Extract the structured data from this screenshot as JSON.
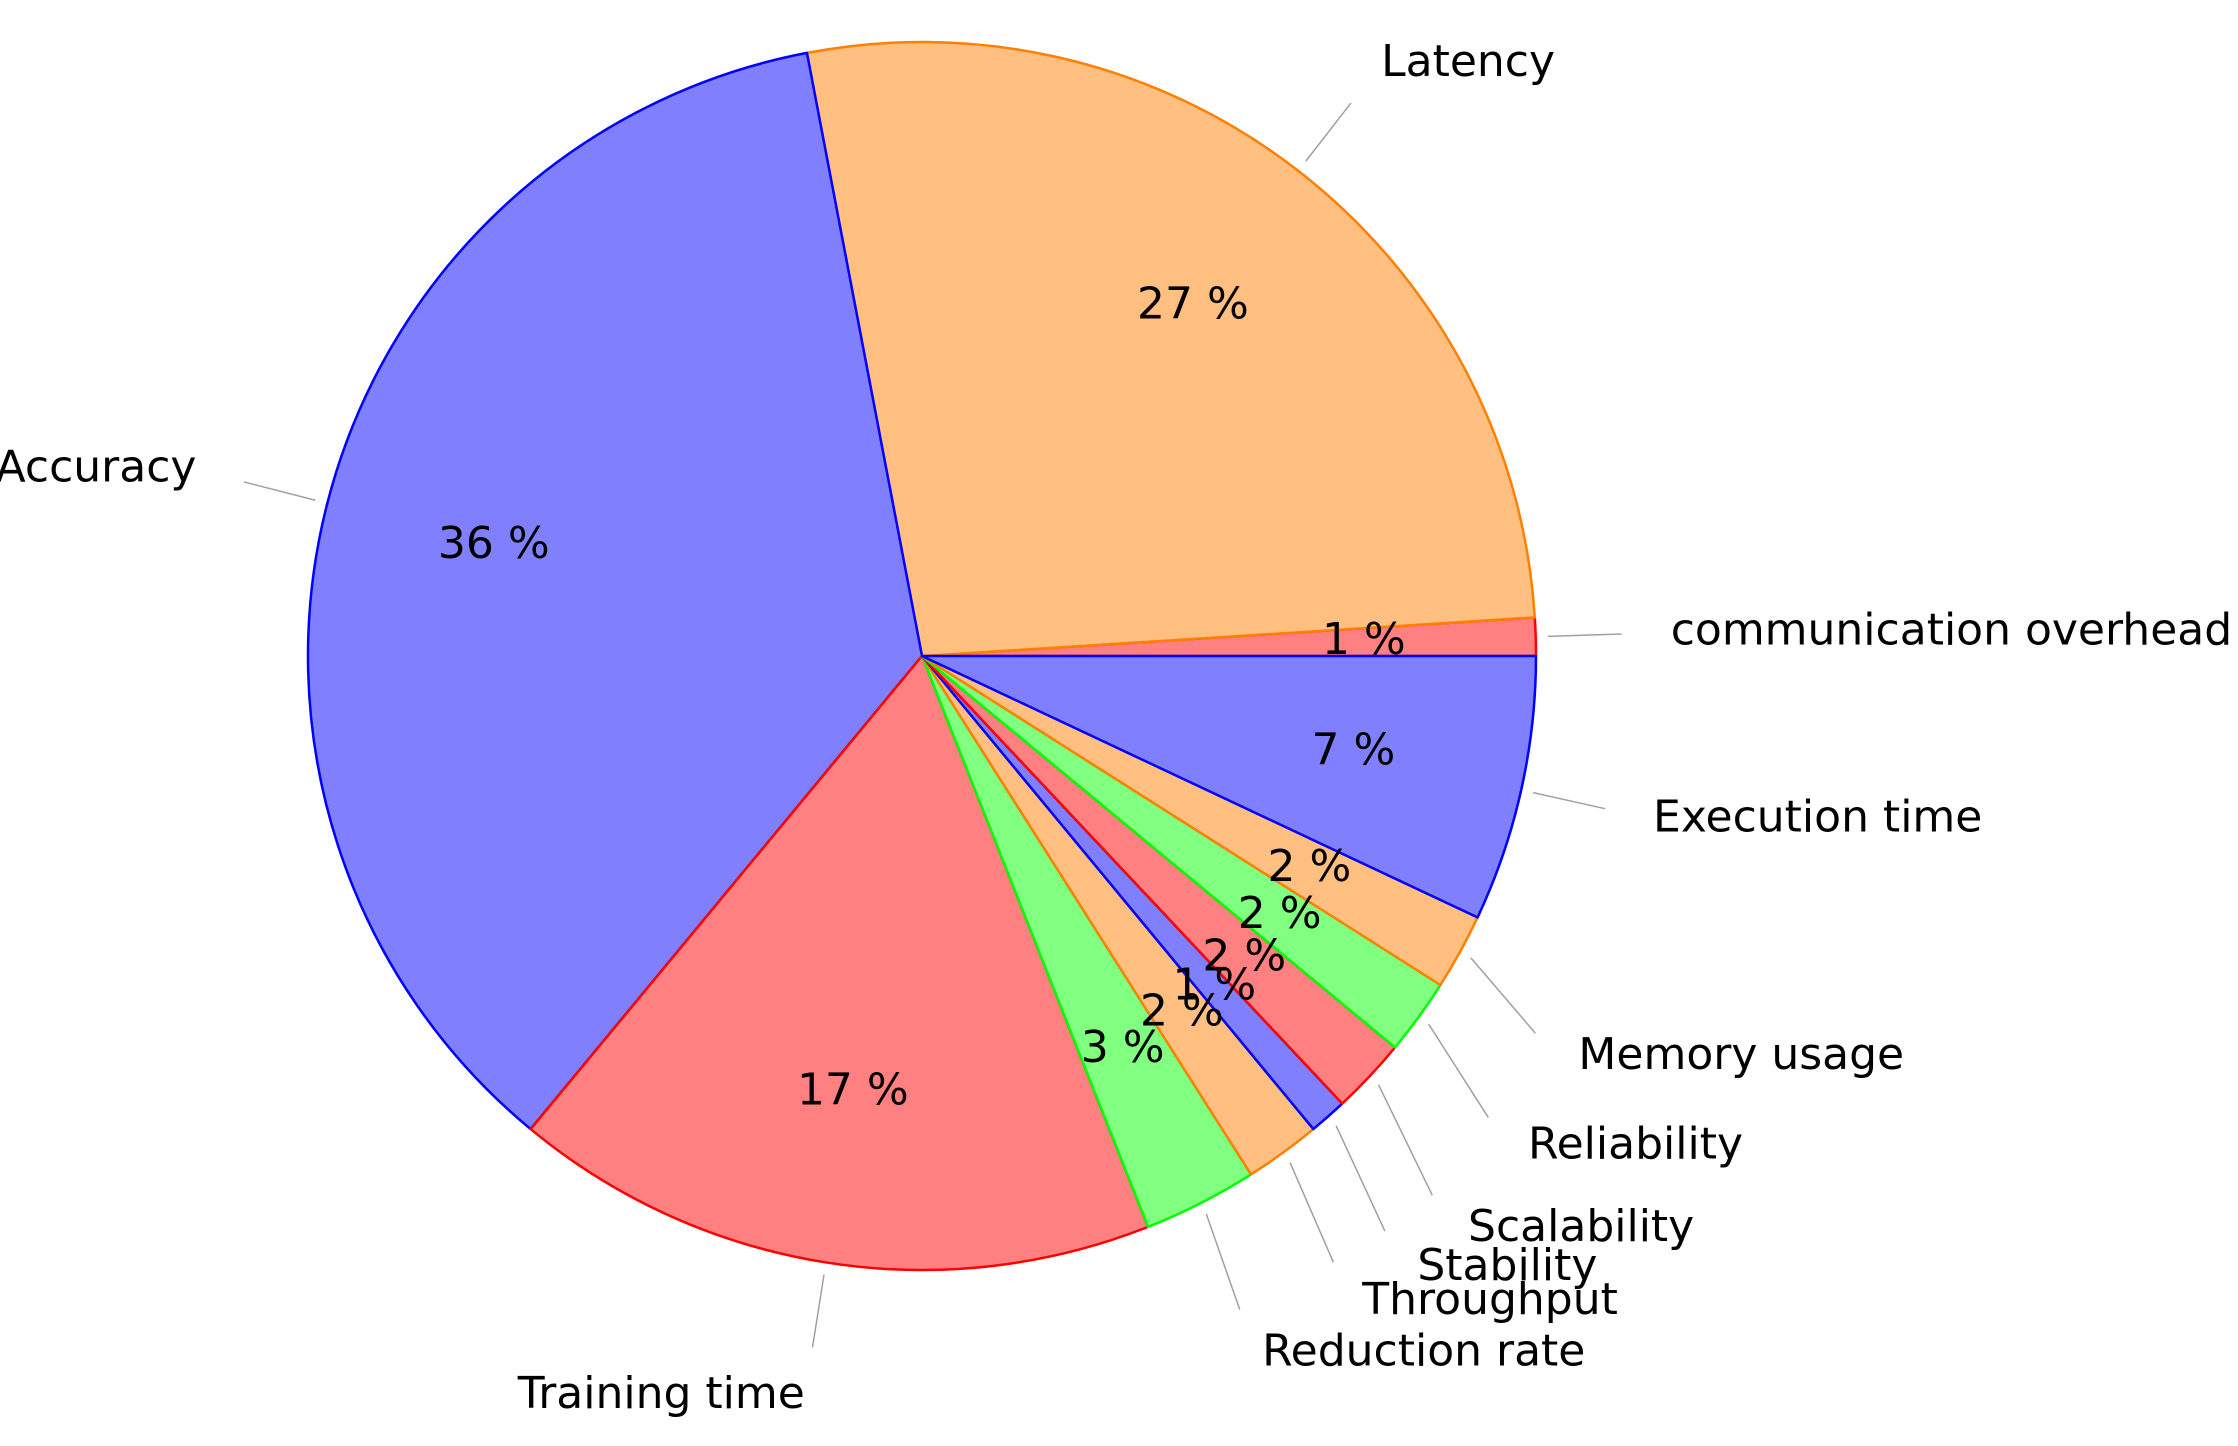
{
  "chart_data": {
    "type": "pie",
    "title": "",
    "unit_suffix": " %",
    "slices": [
      {
        "label": "communication overhead",
        "value": 1,
        "fill": "#ff8080",
        "stroke": "#ff0000"
      },
      {
        "label": "Latency",
        "value": 27,
        "fill": "#ffbf80",
        "stroke": "#ff8000"
      },
      {
        "label": "Accuracy",
        "value": 36,
        "fill": "#8080ff",
        "stroke": "#0000ff"
      },
      {
        "label": "Training time",
        "value": 17,
        "fill": "#ff8080",
        "stroke": "#ff0000"
      },
      {
        "label": "Reduction rate",
        "value": 3,
        "fill": "#80ff80",
        "stroke": "#00ff00"
      },
      {
        "label": "Throughput",
        "value": 2,
        "fill": "#ffbf80",
        "stroke": "#ff8000"
      },
      {
        "label": "Stability",
        "value": 1,
        "fill": "#8080ff",
        "stroke": "#0000ff"
      },
      {
        "label": "Scalability",
        "value": 2,
        "fill": "#ff8080",
        "stroke": "#ff0000"
      },
      {
        "label": "Reliability",
        "value": 2,
        "fill": "#80ff80",
        "stroke": "#00ff00"
      },
      {
        "label": "Memory usage",
        "value": 2,
        "fill": "#ffbf80",
        "stroke": "#ff8000"
      },
      {
        "label": "Execution time",
        "value": 7,
        "fill": "#8080ff",
        "stroke": "#0000ff"
      }
    ]
  }
}
